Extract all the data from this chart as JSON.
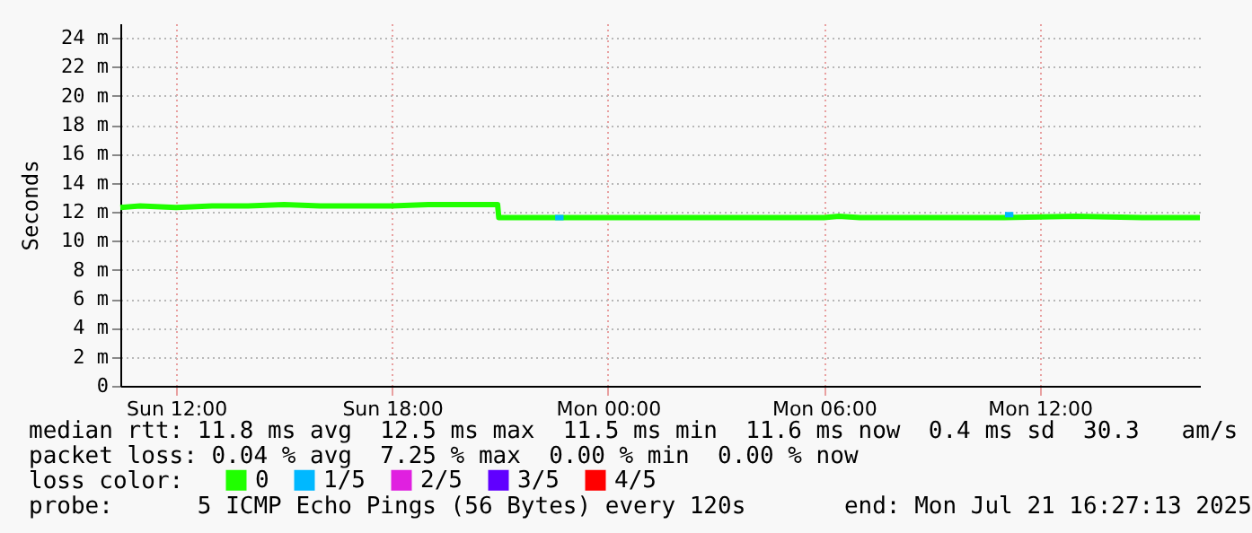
{
  "chart_data": {
    "type": "line",
    "ylabel": "Seconds",
    "xlim": [
      "2025-07-20T10:27",
      "2025-07-21T16:27"
    ],
    "xticks": [
      {
        "value": "2025-07-20T12:00",
        "label": "Sun 12:00"
      },
      {
        "value": "2025-07-20T18:00",
        "label": "Sun 18:00"
      },
      {
        "value": "2025-07-21T00:00",
        "label": "Mon 00:00"
      },
      {
        "value": "2025-07-21T06:00",
        "label": "Mon 06:00"
      },
      {
        "value": "2025-07-21T12:00",
        "label": "Mon 12:00"
      }
    ],
    "ylim": [
      0,
      25
    ],
    "yticks": [
      0,
      {
        "value": 2,
        "label": "2 m"
      },
      {
        "value": 4,
        "label": "4 m"
      },
      {
        "value": 6,
        "label": "6 m"
      },
      {
        "value": 8,
        "label": "8 m"
      },
      {
        "value": 10,
        "label": "10 m"
      },
      {
        "value": 12,
        "label": "12 m"
      },
      {
        "value": 14,
        "label": "14 m"
      },
      {
        "value": 16,
        "label": "16 m"
      },
      {
        "value": 18,
        "label": "18 m"
      },
      {
        "value": 20,
        "label": "20 m"
      },
      {
        "value": 22,
        "label": "22 m"
      },
      {
        "value": 24,
        "label": "24 m"
      }
    ],
    "grid": true,
    "legend": "bottom",
    "legend_title": "loss color:",
    "series": [
      {
        "name": "0",
        "color": "#20ff00",
        "x": [
          "2025-07-20T10:27",
          "2025-07-20T11:00",
          "2025-07-20T12:00",
          "2025-07-20T13:00",
          "2025-07-20T14:00",
          "2025-07-20T15:00",
          "2025-07-20T16:00",
          "2025-07-20T17:00",
          "2025-07-20T18:00",
          "2025-07-20T19:00",
          "2025-07-20T20:00",
          "2025-07-20T20:56",
          "2025-07-20T20:58",
          "2025-07-20T22:00",
          "2025-07-20T23:00",
          "2025-07-21T00:00",
          "2025-07-21T02:00",
          "2025-07-21T04:00",
          "2025-07-21T06:00",
          "2025-07-21T06:25",
          "2025-07-21T07:00",
          "2025-07-21T09:00",
          "2025-07-21T11:00",
          "2025-07-21T13:00",
          "2025-07-21T15:00",
          "2025-07-21T16:27"
        ],
        "values": [
          12.3,
          12.4,
          12.3,
          12.4,
          12.4,
          12.5,
          12.4,
          12.4,
          12.4,
          12.5,
          12.5,
          12.5,
          11.6,
          11.6,
          11.6,
          11.6,
          11.6,
          11.6,
          11.6,
          11.7,
          11.6,
          11.6,
          11.6,
          11.7,
          11.6,
          11.6
        ]
      },
      {
        "name": "1/5",
        "color": "#00b8ff",
        "x": [
          "2025-07-20T22:32",
          "2025-07-20T22:46",
          "2025-07-21T00:00",
          "2025-07-21T11:02",
          "2025-07-21T11:16"
        ],
        "values": [
          11.6,
          11.6,
          null,
          11.8,
          11.8
        ]
      },
      {
        "name": "2/5",
        "color": "#e020e0"
      },
      {
        "name": "3/5",
        "color": "#6000ff"
      },
      {
        "name": "4/5",
        "color": "#ff0000"
      }
    ],
    "annotations": [
      "median rtt: 11.8 ms avg  12.5 ms max  11.5 ms min  11.6 ms now  0.4 ms sd  30.3   am/s",
      "packet loss: 0.04 % avg  7.25 % max  0.00 % min  0.00 % now",
      "probe:      5 ICMP Echo Pings (56 Bytes) every 120s       end: Mon Jul 21 16:27:13 2025"
    ]
  }
}
